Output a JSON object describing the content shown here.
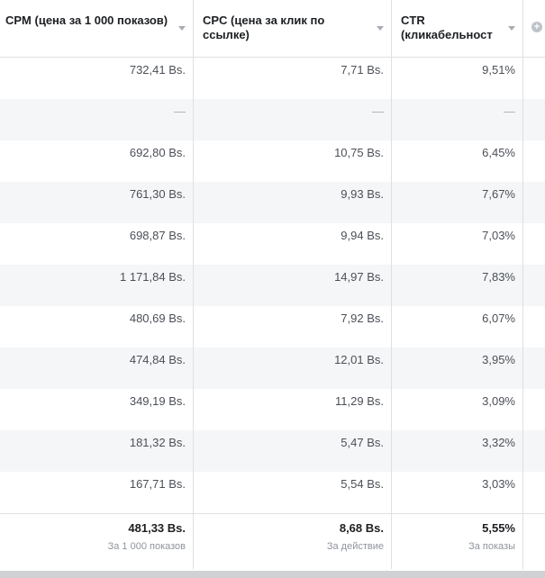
{
  "header": {
    "cpm_label": "CPM (цена за 1 000 показов)",
    "cpc_label": "CPC (цена за клик по ссылке)",
    "ctr_label": "CTR (кликабельност",
    "add_column_icon": "plus-circle-icon",
    "sort_icon": "chevron-down-icon"
  },
  "rows": [
    {
      "cpm": "732,41 Bs.",
      "cpc": "7,71 Bs.",
      "ctr": "9,51%"
    },
    {
      "cpm": "—",
      "cpc": "—",
      "ctr": "—"
    },
    {
      "cpm": "692,80 Bs.",
      "cpc": "10,75 Bs.",
      "ctr": "6,45%"
    },
    {
      "cpm": "761,30 Bs.",
      "cpc": "9,93 Bs.",
      "ctr": "7,67%"
    },
    {
      "cpm": "698,87 Bs.",
      "cpc": "9,94 Bs.",
      "ctr": "7,03%"
    },
    {
      "cpm": "1 171,84 Bs.",
      "cpc": "14,97 Bs.",
      "ctr": "7,83%"
    },
    {
      "cpm": "480,69 Bs.",
      "cpc": "7,92 Bs.",
      "ctr": "6,07%"
    },
    {
      "cpm": "474,84 Bs.",
      "cpc": "12,01 Bs.",
      "ctr": "3,95%"
    },
    {
      "cpm": "349,19 Bs.",
      "cpc": "11,29 Bs.",
      "ctr": "3,09%"
    },
    {
      "cpm": "181,32 Bs.",
      "cpc": "5,47 Bs.",
      "ctr": "3,32%"
    },
    {
      "cpm": "167,71 Bs.",
      "cpc": "5,54 Bs.",
      "ctr": "3,03%"
    }
  ],
  "footer": {
    "cpm_value": "481,33 Bs.",
    "cpm_sub": "За 1 000 показов",
    "cpc_value": "8,68 Bs.",
    "cpc_sub": "За действие",
    "ctr_value": "5,55%",
    "ctr_sub": "За показы"
  },
  "colors": {
    "alt_row": "#f5f6f7",
    "divider": "#dddfe2",
    "text": "#4b4f56",
    "header_text": "#1c1e21"
  }
}
